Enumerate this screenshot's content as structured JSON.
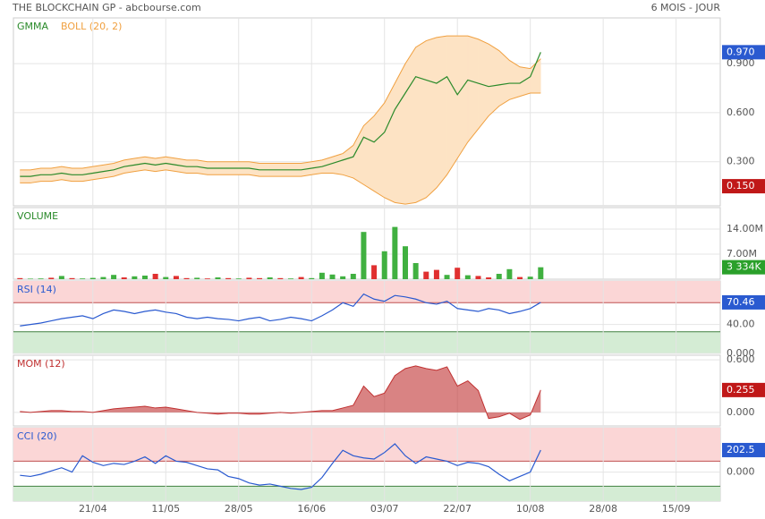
{
  "header": {
    "title": "THE BLOCKCHAIN GP - abcbourse.com",
    "period": "6 MOIS - JOUR"
  },
  "chart_data": [
    {
      "type": "line",
      "ylim": [
        0.03,
        1.18
      ],
      "yticks": [
        {
          "value": 0.3,
          "label": "0.300"
        },
        {
          "value": 0.6,
          "label": "0.600"
        },
        {
          "value": 0.9,
          "label": "0.900"
        }
      ],
      "series": [
        {
          "name": "GMMA",
          "color": "#2a8a2a",
          "values": [
            0.21,
            0.21,
            0.22,
            0.22,
            0.23,
            0.22,
            0.22,
            0.23,
            0.24,
            0.25,
            0.27,
            0.28,
            0.29,
            0.28,
            0.29,
            0.28,
            0.27,
            0.27,
            0.26,
            0.26,
            0.26,
            0.26,
            0.26,
            0.25,
            0.25,
            0.25,
            0.25,
            0.25,
            0.26,
            0.27,
            0.29,
            0.31,
            0.33,
            0.45,
            0.42,
            0.48,
            0.62,
            0.72,
            0.82,
            0.8,
            0.78,
            0.82,
            0.71,
            0.8,
            0.78,
            0.76,
            0.77,
            0.78,
            0.78,
            0.82,
            0.97,
            null,
            null,
            null,
            null,
            null,
            null,
            null,
            null,
            null,
            null,
            null,
            null,
            null,
            null,
            null,
            null,
            null
          ]
        },
        {
          "name": "BOLL (20, 2)",
          "color": "#f0a040",
          "upper": [
            0.25,
            0.25,
            0.26,
            0.26,
            0.27,
            0.26,
            0.26,
            0.27,
            0.28,
            0.29,
            0.31,
            0.32,
            0.33,
            0.32,
            0.33,
            0.32,
            0.31,
            0.31,
            0.3,
            0.3,
            0.3,
            0.3,
            0.3,
            0.29,
            0.29,
            0.29,
            0.29,
            0.29,
            0.3,
            0.31,
            0.33,
            0.35,
            0.4,
            0.52,
            0.58,
            0.66,
            0.78,
            0.9,
            1.0,
            1.04,
            1.06,
            1.07,
            1.07,
            1.07,
            1.05,
            1.02,
            0.98,
            0.92,
            0.88,
            0.87,
            0.93,
            null,
            null,
            null,
            null,
            null,
            null,
            null,
            null,
            null,
            null,
            null,
            null,
            null,
            null,
            null,
            null,
            null
          ],
          "lower": [
            0.17,
            0.17,
            0.18,
            0.18,
            0.19,
            0.18,
            0.18,
            0.19,
            0.2,
            0.21,
            0.23,
            0.24,
            0.25,
            0.24,
            0.25,
            0.24,
            0.23,
            0.23,
            0.22,
            0.22,
            0.22,
            0.22,
            0.22,
            0.21,
            0.21,
            0.21,
            0.21,
            0.21,
            0.22,
            0.23,
            0.23,
            0.22,
            0.2,
            0.16,
            0.12,
            0.08,
            0.05,
            0.04,
            0.05,
            0.08,
            0.14,
            0.22,
            0.32,
            0.42,
            0.5,
            0.58,
            0.64,
            0.68,
            0.7,
            0.72,
            0.72,
            null,
            null,
            null,
            null,
            null,
            null,
            null,
            null,
            null,
            null,
            null,
            null,
            null,
            null,
            null,
            null,
            null
          ]
        }
      ],
      "side_labels": [
        {
          "value": 0.97,
          "label": "0.970",
          "color": "#2a5ad0"
        },
        {
          "value": 0.15,
          "label": "0.150",
          "color": "#c01818"
        }
      ]
    },
    {
      "type": "bar",
      "title": "VOLUME",
      "ylim": [
        0,
        20000000
      ],
      "yticks": [
        {
          "value": 7000000,
          "label": "7.00M"
        },
        {
          "value": 14000000,
          "label": "14.00M"
        }
      ],
      "values": [
        300000,
        150000,
        200000,
        400000,
        900000,
        300000,
        200000,
        350000,
        600000,
        1200000,
        500000,
        800000,
        1000000,
        1500000,
        600000,
        900000,
        300000,
        400000,
        200000,
        500000,
        300000,
        200000,
        400000,
        300000,
        500000,
        300000,
        200000,
        600000,
        300000,
        1800000,
        1300000,
        800000,
        1500000,
        13200000,
        3900000,
        7800000,
        14600000,
        9200000,
        4500000,
        2100000,
        2600000,
        1200000,
        3200000,
        1100000,
        900000,
        500000,
        1500000,
        2800000,
        600000,
        700000,
        3334000,
        null,
        null,
        null,
        null,
        null,
        null,
        null,
        null,
        null,
        null,
        null,
        null,
        null,
        null,
        null,
        null,
        null
      ],
      "colors": [
        "#e03030",
        "#40b040",
        "#40b040",
        "#e03030",
        "#40b040",
        "#e03030",
        "#40b040",
        "#40b040",
        "#40b040",
        "#40b040",
        "#e03030",
        "#40b040",
        "#40b040",
        "#e03030",
        "#40b040",
        "#e03030",
        "#e03030",
        "#40b040",
        "#e03030",
        "#40b040",
        "#e03030",
        "#40b040",
        "#e03030",
        "#e03030",
        "#40b040",
        "#e03030",
        "#40b040",
        "#e03030",
        "#40b040",
        "#40b040",
        "#40b040",
        "#40b040",
        "#40b040",
        "#40b040",
        "#e03030",
        "#40b040",
        "#40b040",
        "#40b040",
        "#40b040",
        "#e03030",
        "#e03030",
        "#40b040",
        "#e03030",
        "#40b040",
        "#e03030",
        "#e03030",
        "#40b040",
        "#40b040",
        "#e03030",
        "#40b040",
        "#40b040",
        null,
        null,
        null,
        null,
        null,
        null,
        null,
        null,
        null,
        null,
        null,
        null,
        null,
        null,
        null,
        null,
        null
      ],
      "side_labels": [
        {
          "value": 3334000,
          "label": "3 334K",
          "color": "#2aa02a"
        }
      ]
    },
    {
      "type": "line",
      "title": "RSI (14)",
      "ylim": [
        0,
        100
      ],
      "zones": [
        30,
        70
      ],
      "yticks": [
        {
          "value": 0,
          "label": "0.000"
        },
        {
          "value": 40,
          "label": "40.00"
        }
      ],
      "series": [
        {
          "color": "#2a5ad0",
          "values": [
            38,
            40,
            42,
            45,
            48,
            50,
            52,
            48,
            55,
            60,
            58,
            55,
            58,
            60,
            57,
            55,
            50,
            48,
            50,
            48,
            47,
            45,
            48,
            50,
            45,
            47,
            50,
            48,
            45,
            52,
            60,
            70,
            65,
            82,
            75,
            72,
            80,
            78,
            75,
            70,
            68,
            72,
            62,
            60,
            58,
            62,
            60,
            55,
            58,
            62,
            70.46,
            null,
            null,
            null,
            null,
            null,
            null,
            null,
            null,
            null,
            null,
            null,
            null,
            null,
            null,
            null,
            null,
            null
          ]
        }
      ],
      "side_labels": [
        {
          "value": 70.46,
          "label": "70.46",
          "color": "#2a5ad0"
        }
      ]
    },
    {
      "type": "area",
      "title": "MOM (12)",
      "ylim": [
        -0.155,
        0.652
      ],
      "color": "#c03030",
      "yticks": [
        {
          "value": 0,
          "label": "0.000"
        },
        {
          "value": 0.6,
          "label": "0.600"
        }
      ],
      "values": [
        0.01,
        0,
        0.01,
        0.02,
        0.02,
        0.01,
        0.01,
        0,
        0.02,
        0.04,
        0.05,
        0.06,
        0.07,
        0.05,
        0.06,
        0.04,
        0.02,
        0,
        -0.01,
        -0.02,
        -0.01,
        -0.01,
        -0.02,
        -0.02,
        -0.01,
        0,
        -0.01,
        0,
        0.01,
        0.02,
        0.02,
        0.05,
        0.08,
        0.3,
        0.18,
        0.22,
        0.42,
        0.5,
        0.53,
        0.5,
        0.48,
        0.52,
        0.3,
        0.36,
        0.25,
        -0.07,
        -0.05,
        -0.01,
        -0.08,
        -0.03,
        0.255,
        null,
        null,
        null,
        null,
        null,
        null,
        null,
        null,
        null,
        null,
        null,
        null,
        null,
        null,
        null,
        null,
        null
      ],
      "side_labels": [
        {
          "value": 0.255,
          "label": "0.255",
          "color": "#c01818"
        }
      ]
    },
    {
      "type": "line",
      "title": "CCI (20)",
      "ylim": [
        -267,
        408
      ],
      "zones": [
        -130,
        100
      ],
      "yticks": [
        {
          "value": 0,
          "label": "0.000"
        }
      ],
      "categories": [
        null,
        null,
        null,
        null,
        null,
        null,
        null,
        "21/04",
        null,
        null,
        null,
        null,
        null,
        null,
        "11/05",
        null,
        null,
        null,
        null,
        null,
        null,
        "28/05",
        null,
        null,
        null,
        null,
        null,
        null,
        "16/06",
        null,
        null,
        null,
        null,
        null,
        null,
        "03/07",
        null,
        null,
        null,
        null,
        null,
        null,
        "22/07",
        null,
        null,
        null,
        null,
        null,
        null,
        "10/08",
        null,
        null,
        null,
        null,
        null,
        null,
        "28/08",
        null,
        null,
        null,
        null,
        null,
        null,
        "15/09",
        null,
        null,
        null,
        null
      ],
      "series": [
        {
          "color": "#2a5ad0",
          "values": [
            -30,
            -40,
            -20,
            10,
            40,
            0,
            150,
            90,
            60,
            80,
            70,
            100,
            140,
            80,
            150,
            100,
            90,
            60,
            30,
            20,
            -40,
            -60,
            -100,
            -120,
            -110,
            -130,
            -150,
            -160,
            -140,
            -50,
            80,
            200,
            150,
            130,
            120,
            180,
            260,
            150,
            80,
            140,
            120,
            100,
            60,
            90,
            80,
            50,
            -20,
            -80,
            -40,
            0,
            202.5,
            null,
            null,
            null,
            null,
            null,
            null,
            null,
            null,
            null,
            null,
            null,
            null,
            null,
            null,
            null,
            null,
            null
          ]
        }
      ],
      "side_labels": [
        {
          "value": 202.5,
          "label": "202.5",
          "color": "#2a5ad0"
        }
      ]
    }
  ]
}
